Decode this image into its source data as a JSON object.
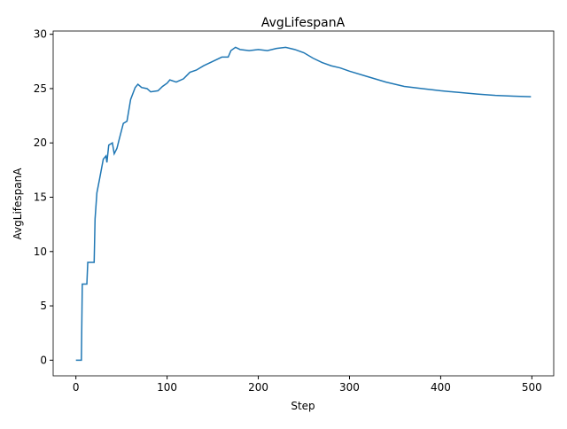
{
  "chart_data": {
    "type": "line",
    "title": "AvgLifespanA",
    "x_label": "Step",
    "y_label": "AvgLifespanA",
    "color": "#1f77b4",
    "x": [
      0,
      6,
      7,
      12,
      13,
      20,
      21,
      23,
      26,
      30,
      33,
      34,
      36,
      40,
      42,
      45,
      48,
      52,
      56,
      60,
      65,
      68,
      72,
      78,
      82,
      90,
      95,
      100,
      103,
      110,
      118,
      125,
      132,
      140,
      150,
      160,
      167,
      170,
      175,
      180,
      190,
      200,
      210,
      220,
      230,
      240,
      250,
      260,
      270,
      280,
      290,
      300,
      320,
      340,
      360,
      380,
      400,
      420,
      440,
      460,
      480,
      499
    ],
    "values": [
      0,
      0,
      7,
      7,
      9,
      9,
      13,
      15.4,
      16.7,
      18.5,
      18.8,
      18.2,
      19.8,
      20,
      19,
      19.5,
      20.5,
      21.8,
      22,
      24,
      25.1,
      25.4,
      25.1,
      25,
      24.7,
      24.8,
      25.2,
      25.5,
      25.8,
      25.6,
      25.9,
      26.5,
      26.7,
      27.1,
      27.5,
      27.9,
      27.9,
      28.5,
      28.8,
      28.6,
      28.5,
      28.6,
      28.5,
      28.7,
      28.8,
      28.6,
      28.3,
      27.8,
      27.4,
      27.1,
      26.9,
      26.6,
      26.1,
      25.6,
      25.2,
      25.0,
      24.8,
      24.65,
      24.5,
      24.37,
      24.3,
      24.25
    ],
    "xlim": [
      -24.95,
      523.95
    ],
    "xticks": [
      0,
      100,
      200,
      300,
      400,
      500
    ],
    "ylim": [
      -1.44,
      30.3
    ],
    "yticks": [
      0,
      5,
      10,
      15,
      20,
      25,
      30
    ]
  }
}
